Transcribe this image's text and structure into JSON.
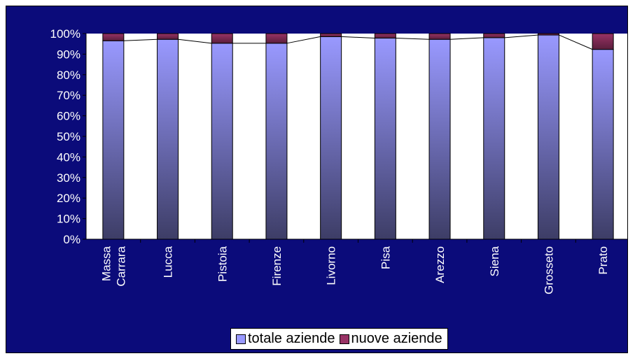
{
  "chart_data": {
    "type": "bar",
    "stacked": true,
    "normalized": true,
    "categories": [
      "Massa Carrara",
      "Lucca",
      "Pistoia",
      "Firenze",
      "Livorno",
      "Pisa",
      "Arezzo",
      "Siena",
      "Grosseto",
      "Prato"
    ],
    "category_lines": [
      [
        "Massa",
        "Carrara"
      ],
      [
        "Lucca"
      ],
      [
        "Pistoia"
      ],
      [
        "Firenze"
      ],
      [
        "Livorno"
      ],
      [
        "Pisa"
      ],
      [
        "Arezzo"
      ],
      [
        "Siena"
      ],
      [
        "Grosseto"
      ],
      [
        "Prato"
      ]
    ],
    "series": [
      {
        "name": "totale aziende",
        "color": "#9999ff",
        "values": [
          96.5,
          97.2,
          95.3,
          95.3,
          98.5,
          97.8,
          97.2,
          98.0,
          99.3,
          92.3
        ]
      },
      {
        "name": "nuove aziende",
        "color": "#993366",
        "values": [
          3.5,
          2.8,
          4.7,
          4.7,
          1.5,
          2.2,
          2.8,
          2.0,
          0.7,
          7.7
        ]
      }
    ],
    "yticks": [
      "0%",
      "10%",
      "20%",
      "30%",
      "40%",
      "50%",
      "60%",
      "70%",
      "80%",
      "90%",
      "100%"
    ],
    "ylim": [
      0,
      100
    ],
    "legend_position": "bottom",
    "plot_background": "#ffffff",
    "chart_background": "#0b0b7a",
    "grid": false
  },
  "legend": {
    "items": [
      {
        "label": "totale aziende",
        "color": "#9999ff"
      },
      {
        "label": "nuove aziende",
        "color": "#993366"
      }
    ]
  }
}
